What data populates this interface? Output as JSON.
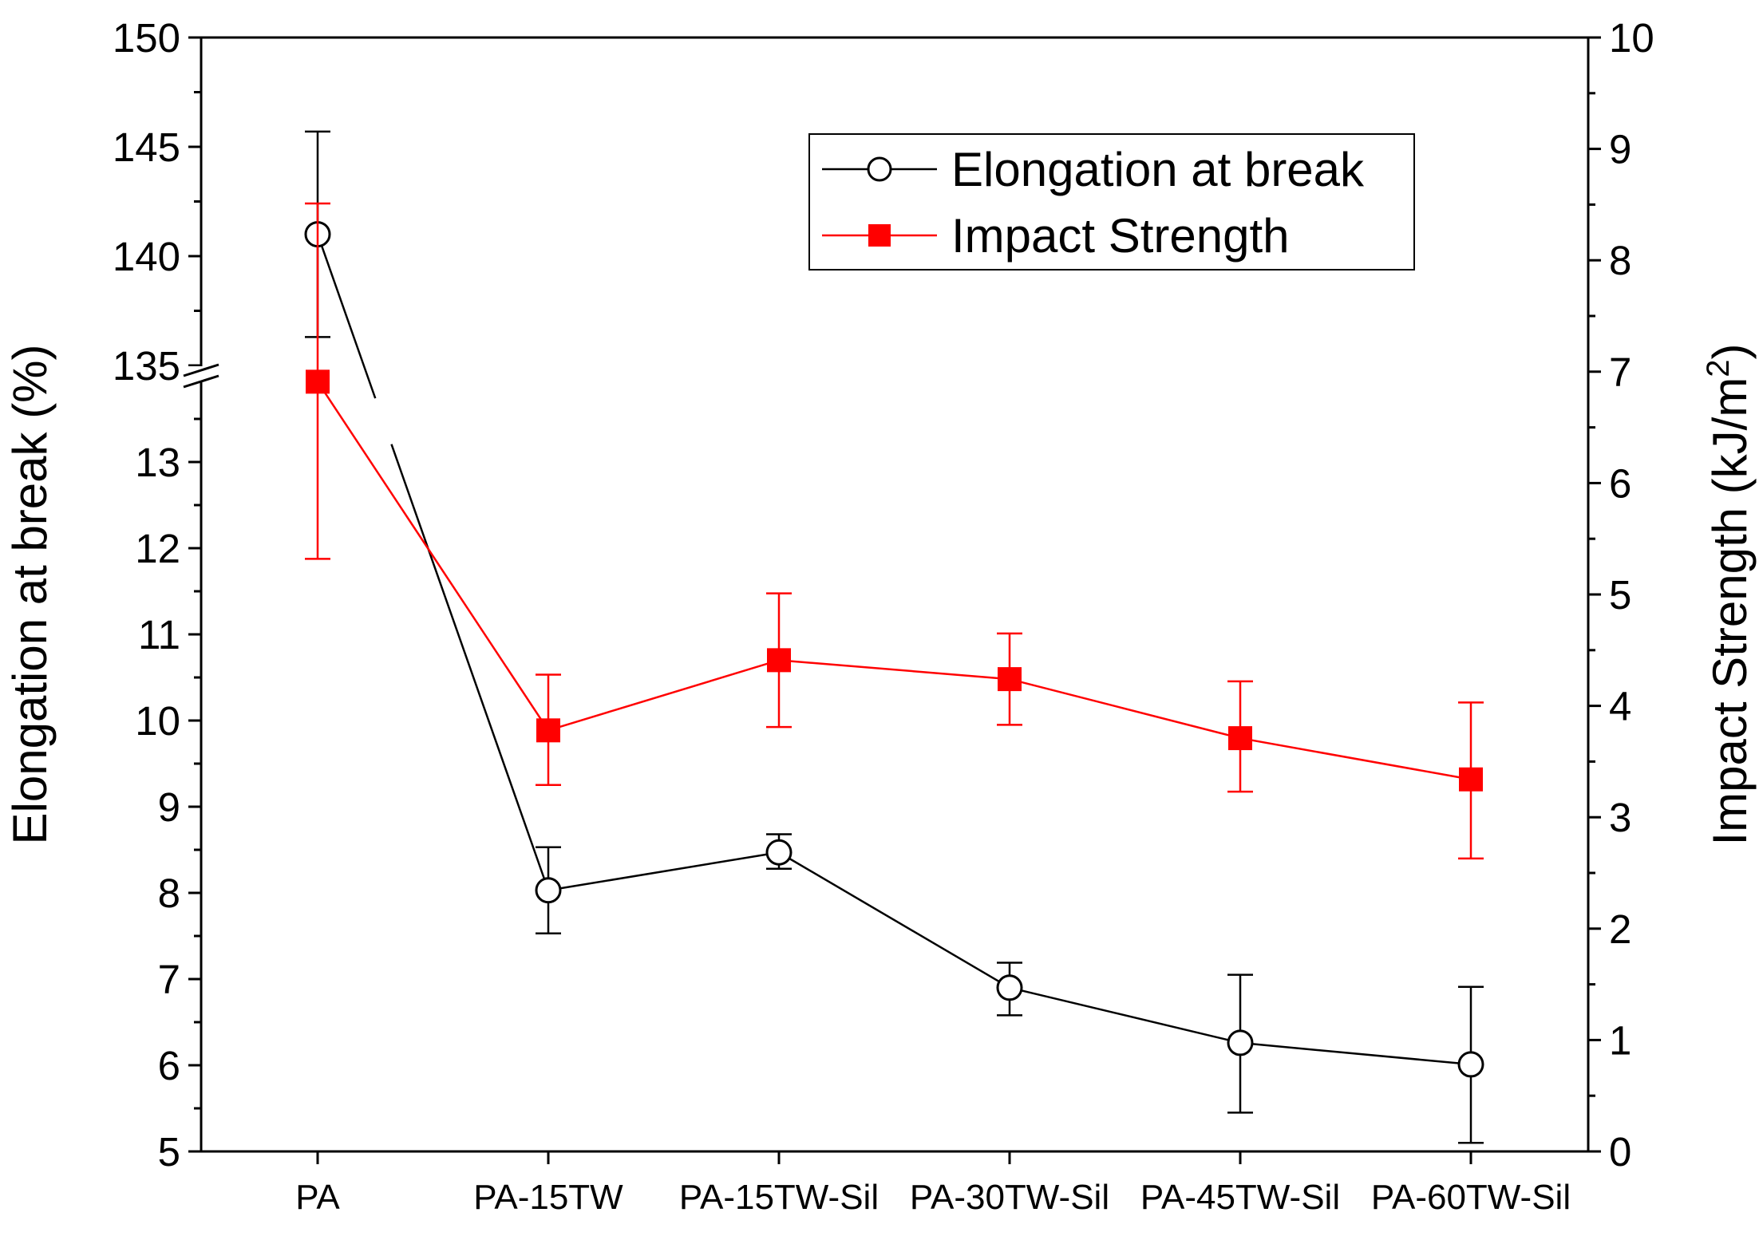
{
  "chart_data": {
    "type": "line",
    "categories": [
      "PA",
      "PA-15TW",
      "PA-15TW-Sil",
      "PA-30TW-Sil",
      "PA-45TW-Sil",
      "PA-60TW-Sil"
    ],
    "series": [
      {
        "name": "Elongation at break",
        "axis": "left",
        "color": "#000000",
        "marker": "open-circle",
        "values": [
          141.0,
          8.03,
          8.47,
          6.9,
          6.26,
          6.01
        ],
        "err_low": [
          136.3,
          7.53,
          8.28,
          6.58,
          5.45,
          5.1
        ],
        "err_high": [
          145.7,
          8.53,
          8.68,
          7.19,
          7.05,
          6.91
        ]
      },
      {
        "name": "Impact Strength",
        "axis": "right",
        "color": "#ff0000",
        "marker": "filled-square",
        "values": [
          6.91,
          3.78,
          4.41,
          4.24,
          3.71,
          3.34
        ],
        "err_low": [
          5.32,
          3.29,
          3.81,
          3.83,
          3.23,
          2.63
        ],
        "err_high": [
          8.51,
          4.28,
          5.01,
          4.65,
          4.22,
          4.03
        ]
      }
    ],
    "left_axis": {
      "title": "Elongation at break (%)",
      "segments": [
        {
          "range": [
            5,
            13.9
          ],
          "ticks": [
            5,
            6,
            7,
            8,
            9,
            10,
            11,
            12,
            13
          ]
        },
        {
          "range": [
            133.5,
            150
          ],
          "ticks": [
            135,
            140,
            145,
            150
          ]
        }
      ],
      "break_at": 134.2
    },
    "right_axis": {
      "title_main": "Impact Strength (kJ/m",
      "title_sup": "2",
      "title_end": ")",
      "range": [
        0,
        10
      ],
      "ticks": [
        0,
        1,
        2,
        3,
        4,
        5,
        6,
        7,
        8,
        9,
        10
      ]
    },
    "legend": {
      "position": "top-right",
      "entries": [
        "Elongation at break",
        "Impact Strength"
      ]
    }
  }
}
